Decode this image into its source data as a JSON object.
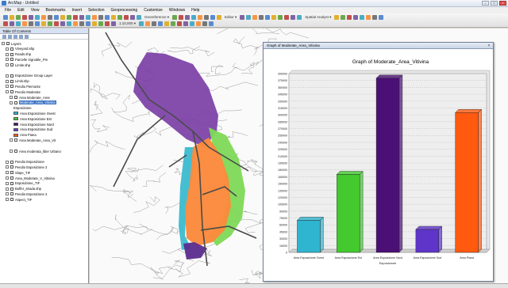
{
  "window": {
    "title": "ArcMap - Untitled",
    "controls": [
      "–",
      "□",
      "×"
    ]
  },
  "menu": [
    "File",
    "Edit",
    "View",
    "Bookmarks",
    "Insert",
    "Selection",
    "Geoprocessing",
    "Customize",
    "Windows",
    "Help"
  ],
  "toolbar": {
    "row1_texts": [
      "Georeference ▾",
      "Editor ▾",
      "Spatial Analyst ▾"
    ],
    "row2_texts": [
      "1:10,000 ▾"
    ]
  },
  "toc": {
    "header": "Table Of Contents",
    "items": [
      {
        "label": "Layers",
        "indent": 0,
        "type": "group"
      },
      {
        "label": "Vineyard.shp",
        "indent": 1,
        "type": "layer"
      },
      {
        "label": "Roads.shp",
        "indent": 1,
        "type": "layer"
      },
      {
        "label": "Parcelle Vignoble_Pm",
        "indent": 1,
        "type": "layer"
      },
      {
        "label": "Limite.shp",
        "indent": 1,
        "type": "layer"
      },
      {
        "label": "",
        "indent": 1,
        "type": "spacer"
      },
      {
        "label": "Esposizione Group Layer",
        "indent": 1,
        "type": "layer"
      },
      {
        "label": "Limiti.shp",
        "indent": 1,
        "type": "layer"
      },
      {
        "label": "Pendio Piemonte",
        "indent": 1,
        "type": "layer"
      },
      {
        "label": "Pendio Moderate",
        "indent": 1,
        "type": "layer"
      },
      {
        "label": "Area Moderate_Aree",
        "indent": 2,
        "type": "layer"
      },
      {
        "label": "Moderate_Area_Vitivina",
        "indent": 2,
        "type": "selected"
      },
      {
        "label": "Esposizione",
        "indent": 3,
        "type": "text"
      },
      {
        "label": "Area Esposizione Ovest",
        "indent": 3,
        "type": "swatch",
        "color": "#2fb5cf"
      },
      {
        "label": "Area Esposizione Est",
        "indent": 3,
        "type": "swatch",
        "color": "#44c92f"
      },
      {
        "label": "Area Esposizione Nord",
        "indent": 3,
        "type": "swatch",
        "color": "#4b1076"
      },
      {
        "label": "Area Esposizione Sud",
        "indent": 3,
        "type": "swatch",
        "color": "#5e35c8"
      },
      {
        "label": "Area Piana",
        "indent": 3,
        "type": "swatch",
        "color": "#ff5a0f"
      },
      {
        "label": "Area Moderate_Area_Vit",
        "indent": 2,
        "type": "layer"
      },
      {
        "label": "",
        "indent": 2,
        "type": "spacer"
      },
      {
        "label": "Area moderata_liber Urbano",
        "indent": 2,
        "type": "layer"
      },
      {
        "label": "",
        "indent": 1,
        "type": "spacer"
      },
      {
        "label": "Pendio Esposizione",
        "indent": 1,
        "type": "layer"
      },
      {
        "label": "Pendio Esposizione 2",
        "indent": 1,
        "type": "layer"
      },
      {
        "label": "Slope_TIF",
        "indent": 1,
        "type": "layer"
      },
      {
        "label": "Area_Moderate_V_Vitivina",
        "indent": 1,
        "type": "layer"
      },
      {
        "label": "Esposizione_TIF",
        "indent": 1,
        "type": "layer"
      },
      {
        "label": "Buffer_strada.shp",
        "indent": 1,
        "type": "layer"
      },
      {
        "label": "Pendio Esposizione 3",
        "indent": 1,
        "type": "layer"
      },
      {
        "label": "Aspect_TIF",
        "indent": 1,
        "type": "layer"
      }
    ]
  },
  "graph_window": {
    "title": "Graph of Moderate_Area_Vitivina",
    "close": "×"
  },
  "chart_data": {
    "type": "bar",
    "title": "Graph of Moderate_Area_Vitivina",
    "xlabel": "Esposizione",
    "ylabel": "",
    "categories": [
      "Area Esposizione Ovest",
      "Area Esposizione Est",
      "Area Esposizione Nord",
      "Area Esposizione Sud",
      "Area Piana"
    ],
    "values": [
      70000,
      170000,
      380000,
      50000,
      305000
    ],
    "colors": [
      "#2fb5cf",
      "#44c92f",
      "#4b1076",
      "#5e35c8",
      "#ff5a0f"
    ],
    "ylim": [
      0,
      390000
    ],
    "yticks": [
      0,
      15000,
      30000,
      45000,
      60000,
      75000,
      90000,
      105000,
      120000,
      135000,
      150000,
      165000,
      180000,
      195000,
      210000,
      225000,
      240000,
      255000,
      270000,
      285000,
      300000,
      315000,
      330000,
      345000,
      360000,
      375000,
      390000
    ],
    "grid": true,
    "style": "3d"
  },
  "map_colors": {
    "purple": "#7b3fa6",
    "orange": "#fb8a3c",
    "green": "#7ed957",
    "cyan": "#3bbbd0",
    "dark_purple": "#5a2c8e"
  }
}
